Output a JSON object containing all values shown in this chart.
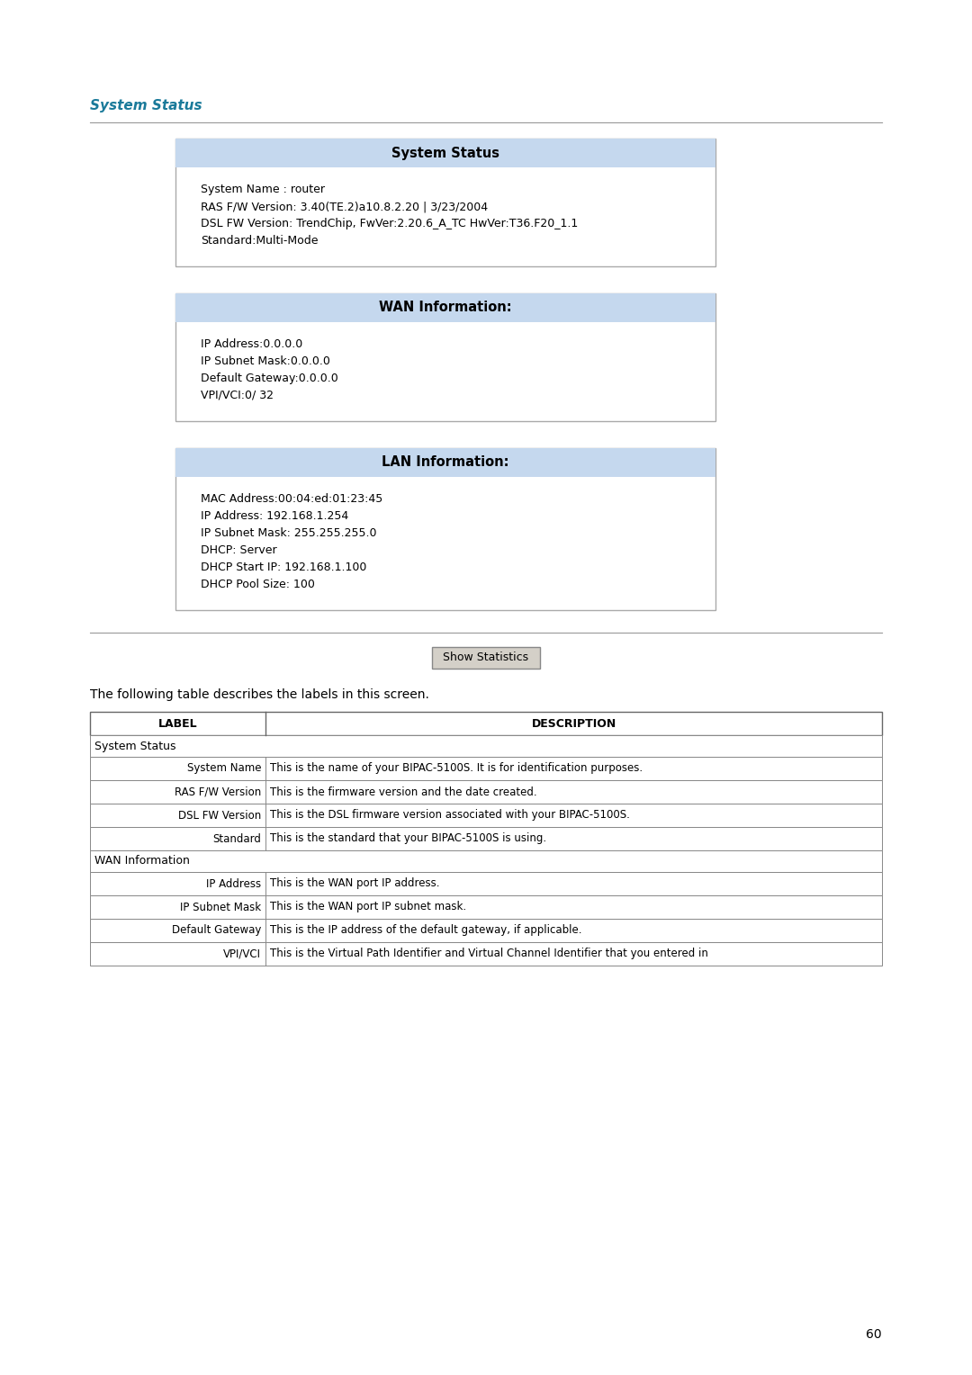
{
  "page_bg": "#ffffff",
  "page_number": "60",
  "section_title": "System Status",
  "section_title_color": "#1a7a9a",
  "system_status_box": {
    "header": "System Status",
    "header_bg": "#c5d8ee",
    "body_bg": "#f0f4f9",
    "lines": [
      "System Name : router",
      "RAS F/W Version: 3.40(TE.2)a10.8.2.20 | 3/23/2004",
      "DSL FW Version: TrendChip, FwVer:2.20.6_A_TC HwVer:T36.F20_1.1",
      "Standard:Multi-Mode"
    ]
  },
  "wan_info_box": {
    "header": "WAN Information:",
    "header_bg": "#c5d8ee",
    "body_bg": "#f0f4f9",
    "lines": [
      "IP Address:0.0.0.0",
      "IP Subnet Mask:0.0.0.0",
      "Default Gateway:0.0.0.0",
      "VPI/VCI:0/ 32"
    ]
  },
  "lan_info_box": {
    "header": "LAN Information:",
    "header_bg": "#c5d8ee",
    "body_bg": "#f0f4f9",
    "lines": [
      "MAC Address:00:04:ed:01:23:45",
      "IP Address: 192.168.1.254",
      "IP Subnet Mask: 255.255.255.0",
      "DHCP: Server",
      "DHCP Start IP: 192.168.1.100",
      "DHCP Pool Size: 100"
    ]
  },
  "show_stats_button": "Show Statistics",
  "following_text": "The following table describes the labels in this screen.",
  "table_header": [
    "LABEL",
    "DESCRIPTION"
  ],
  "table_rows": [
    {
      "type": "section",
      "col1": "System Status",
      "col2": ""
    },
    {
      "type": "data",
      "col1": "System Name",
      "col2": "This is the name of your BIPAC-5100S. It is for identification purposes."
    },
    {
      "type": "data",
      "col1": "RAS F/W Version",
      "col2": "This is the firmware version and the date created."
    },
    {
      "type": "data",
      "col1": "DSL FW Version",
      "col2": "This is the DSL firmware version associated with your BIPAC-5100S."
    },
    {
      "type": "data",
      "col1": "Standard",
      "col2": "This is the standard that your BIPAC-5100S is using."
    },
    {
      "type": "section",
      "col1": "WAN Information",
      "col2": ""
    },
    {
      "type": "data",
      "col1": "IP Address",
      "col2": "This is the WAN port IP address."
    },
    {
      "type": "data",
      "col1": "IP Subnet Mask",
      "col2": "This is the WAN port IP subnet mask."
    },
    {
      "type": "data",
      "col1": "Default Gateway",
      "col2": "This is the IP address of the default gateway, if applicable."
    },
    {
      "type": "data",
      "col1": "VPI/VCI",
      "col2": "This is the Virtual Path Identifier and Virtual Channel Identifier that you entered in"
    }
  ]
}
